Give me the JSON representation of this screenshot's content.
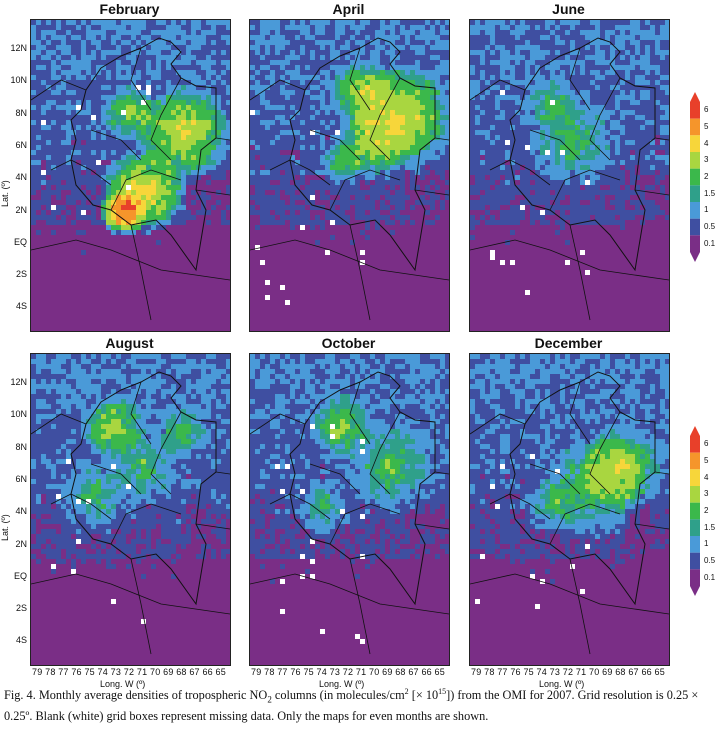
{
  "panels": [
    {
      "title": "February"
    },
    {
      "title": "April"
    },
    {
      "title": "June"
    },
    {
      "title": "August"
    },
    {
      "title": "October"
    },
    {
      "title": "December"
    }
  ],
  "axes": {
    "y_label": "Lat. (º)",
    "x_label": "Long. W (º)",
    "y_ticks": [
      "12N",
      "10N",
      "8N",
      "6N",
      "4N",
      "2N",
      "EQ",
      "2S",
      "4S"
    ],
    "x_ticks": "79 78 77 76 75 74 73 72 71 70 69 68 67 66 65"
  },
  "colorbar": {
    "labels": [
      "6",
      "5",
      "4",
      "3",
      "2",
      "1.5",
      "1",
      "0.5",
      "0.1"
    ],
    "colors": [
      "#e8402a",
      "#f5952b",
      "#f7d63a",
      "#a9d640",
      "#3bb84b",
      "#2fa08a",
      "#4a9ad8",
      "#3f4fa1",
      "#7a2e86"
    ]
  },
  "caption": {
    "part1": "Fig. 4. Monthly average densities of tropospheric NO",
    "sub": "2",
    "part2": " columns (in molecules/cm",
    "sup1": "2",
    "part3": " [× 10",
    "sup2": "15",
    "part4": "]) from the OMI for 2007. Grid resolution is 0.25 × 0.25º. Blank (white) grid boxes represent missing data. Only the maps for even months are shown."
  }
}
